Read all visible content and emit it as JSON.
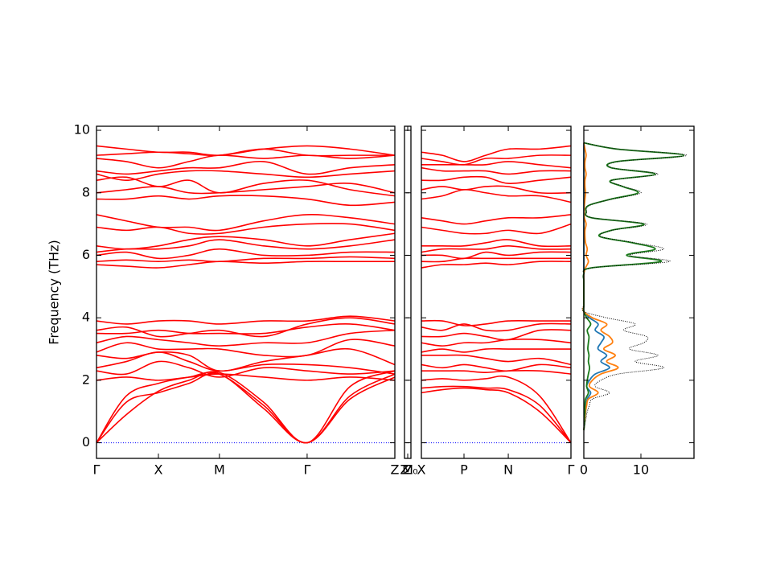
{
  "chart_data": [
    {
      "type": "line",
      "ylabel": "Frequency (THz)",
      "color": "#ff0000",
      "xlim": [
        0,
        1
      ],
      "ylim": [
        -0.5,
        10.13
      ],
      "yticks": [
        0,
        2,
        4,
        6,
        8,
        10
      ],
      "show_ytick_labels": true,
      "xticks": [
        {
          "value": 0,
          "label": "Γ"
        },
        {
          "value": 0.2075,
          "label": "X"
        },
        {
          "value": 0.412,
          "label": "M"
        },
        {
          "value": 0.706,
          "label": "Γ"
        },
        {
          "value": 1,
          "label": "Z"
        }
      ],
      "hline": 0,
      "hline_color": "#0000ff",
      "x": [
        0,
        0.1,
        0.2075,
        0.31,
        0.412,
        0.56,
        0.706,
        0.85,
        1
      ],
      "series": [
        {
          "values": [
            0,
            1.5,
            1.9,
            2.1,
            2.2,
            1.2,
            0,
            1.5,
            2.2
          ]
        },
        {
          "values": [
            0,
            1.3,
            1.6,
            1.9,
            2.2,
            1.1,
            0,
            1.4,
            2.1
          ]
        },
        {
          "values": [
            0,
            0.9,
            1.65,
            2.0,
            2.25,
            1.3,
            0,
            1.8,
            2.3
          ]
        },
        {
          "values": [
            2.0,
            2.1,
            2.0,
            2.1,
            2.2,
            2.1,
            2.0,
            2.1,
            2.0
          ]
        },
        {
          "values": [
            2.3,
            2.2,
            2.6,
            2.4,
            2.1,
            2.4,
            2.3,
            2.2,
            2.3
          ]
        },
        {
          "values": [
            2.4,
            2.6,
            2.9,
            2.6,
            2.3,
            2.5,
            2.5,
            2.4,
            2.2
          ]
        },
        {
          "values": [
            2.8,
            2.7,
            2.9,
            2.8,
            2.3,
            2.6,
            2.8,
            3.0,
            2.5
          ]
        },
        {
          "values": [
            2.9,
            3.2,
            3.0,
            3.0,
            3.0,
            2.8,
            2.8,
            3.3,
            3.1
          ]
        },
        {
          "values": [
            3.2,
            3.4,
            3.3,
            3.2,
            3.1,
            3.2,
            3.2,
            3.5,
            3.6
          ]
        },
        {
          "values": [
            3.5,
            3.5,
            3.6,
            3.5,
            3.5,
            3.5,
            3.7,
            3.8,
            3.6
          ]
        },
        {
          "values": [
            3.6,
            3.7,
            3.4,
            3.5,
            3.6,
            3.4,
            3.8,
            4.0,
            3.8
          ]
        },
        {
          "values": [
            3.9,
            3.8,
            3.9,
            3.9,
            3.8,
            3.9,
            3.9,
            4.05,
            3.9
          ]
        },
        {
          "values": [
            5.7,
            5.65,
            5.6,
            5.7,
            5.8,
            5.75,
            5.8,
            5.8,
            5.8
          ]
        },
        {
          "values": [
            5.8,
            5.85,
            5.8,
            5.85,
            5.8,
            5.9,
            5.9,
            5.95,
            5.9
          ]
        },
        {
          "values": [
            6.0,
            6.1,
            5.9,
            6.0,
            6.2,
            6.0,
            6.0,
            6.1,
            6.1
          ]
        },
        {
          "values": [
            6.1,
            6.2,
            6.2,
            6.3,
            6.5,
            6.3,
            6.2,
            6.3,
            6.5
          ]
        },
        {
          "values": [
            6.3,
            6.2,
            6.3,
            6.5,
            6.6,
            6.5,
            6.3,
            6.5,
            6.7
          ]
        },
        {
          "values": [
            6.9,
            6.8,
            6.9,
            6.7,
            6.7,
            6.9,
            7.0,
            7.0,
            6.8
          ]
        },
        {
          "values": [
            7.3,
            7.1,
            6.9,
            6.9,
            6.8,
            7.1,
            7.3,
            7.2,
            7.0
          ]
        },
        {
          "values": [
            7.8,
            7.8,
            7.9,
            7.8,
            7.9,
            7.9,
            7.8,
            7.6,
            7.7
          ]
        },
        {
          "values": [
            8.0,
            8.1,
            8.2,
            8.0,
            8.0,
            8.1,
            8.2,
            8.3,
            8.0
          ]
        },
        {
          "values": [
            8.4,
            8.5,
            8.2,
            8.4,
            8.0,
            8.3,
            8.4,
            8.1,
            7.9
          ]
        },
        {
          "values": [
            8.6,
            8.4,
            8.6,
            8.7,
            8.7,
            8.6,
            8.5,
            8.6,
            8.7
          ]
        },
        {
          "values": [
            8.7,
            8.6,
            8.7,
            8.8,
            8.8,
            9.0,
            8.6,
            8.8,
            8.9
          ]
        },
        {
          "values": [
            9.1,
            9.0,
            8.8,
            9.0,
            9.2,
            9.1,
            9.2,
            9.1,
            9.2
          ]
        },
        {
          "values": [
            9.2,
            9.25,
            9.3,
            9.25,
            9.2,
            9.4,
            9.2,
            9.2,
            9.2
          ]
        },
        {
          "values": [
            9.5,
            9.4,
            9.3,
            9.3,
            9.2,
            9.4,
            9.5,
            9.4,
            9.2
          ]
        }
      ]
    },
    {
      "type": "line",
      "color": "#ff0000",
      "xlim": [
        0,
        1
      ],
      "ylim": [
        -0.5,
        10.13
      ],
      "yticks": [
        0,
        2,
        4,
        6,
        8,
        10
      ],
      "show_ytick_labels": false,
      "xticks": [
        {
          "value": 0,
          "label": "Z"
        },
        {
          "value": 0.5,
          "label": "M"
        },
        {
          "value": 1,
          "label": "Z₀"
        }
      ]
    },
    {
      "type": "line",
      "color": "#ff0000",
      "xlim": [
        0,
        1
      ],
      "ylim": [
        -0.5,
        10.13
      ],
      "yticks": [
        0,
        2,
        4,
        6,
        8,
        10
      ],
      "show_ytick_labels": false,
      "xticks": [
        {
          "value": 0,
          "label": "X"
        },
        {
          "value": 0.285,
          "label": "P"
        },
        {
          "value": 0.581,
          "label": "N"
        },
        {
          "value": 1,
          "label": "Γ"
        }
      ],
      "hline": 0,
      "hline_color": "#0000ff",
      "x": [
        0,
        0.14,
        0.285,
        0.43,
        0.581,
        0.79,
        1
      ],
      "series": [
        {
          "values": [
            1.6,
            1.7,
            1.75,
            1.7,
            1.6,
            1.0,
            0
          ]
        },
        {
          "values": [
            1.75,
            1.8,
            1.8,
            1.75,
            1.7,
            1.2,
            0
          ]
        },
        {
          "values": [
            2.0,
            2.05,
            2.0,
            2.05,
            2.1,
            1.5,
            0
          ]
        },
        {
          "values": [
            2.3,
            2.3,
            2.3,
            2.25,
            2.3,
            2.3,
            2.2
          ]
        },
        {
          "values": [
            2.5,
            2.4,
            2.5,
            2.4,
            2.3,
            2.5,
            2.4
          ]
        },
        {
          "values": [
            2.8,
            2.8,
            2.8,
            2.7,
            2.6,
            2.7,
            2.5
          ]
        },
        {
          "values": [
            2.9,
            3.0,
            2.9,
            3.0,
            3.0,
            3.0,
            3.0
          ]
        },
        {
          "values": [
            3.2,
            3.1,
            3.2,
            3.2,
            3.3,
            3.3,
            3.2
          ]
        },
        {
          "values": [
            3.4,
            3.4,
            3.5,
            3.4,
            3.3,
            3.6,
            3.6
          ]
        },
        {
          "values": [
            3.7,
            3.6,
            3.8,
            3.6,
            3.6,
            3.8,
            3.8
          ]
        },
        {
          "values": [
            3.9,
            3.9,
            3.75,
            3.8,
            3.9,
            3.9,
            3.9
          ]
        },
        {
          "values": [
            5.6,
            5.7,
            5.7,
            5.75,
            5.7,
            5.8,
            5.8
          ]
        },
        {
          "values": [
            5.8,
            5.8,
            5.9,
            5.9,
            5.9,
            5.9,
            5.9
          ]
        },
        {
          "values": [
            6.0,
            6.0,
            5.9,
            6.1,
            6.0,
            6.1,
            6.1
          ]
        },
        {
          "values": [
            6.1,
            6.2,
            6.2,
            6.2,
            6.3,
            6.2,
            6.2
          ]
        },
        {
          "values": [
            6.3,
            6.3,
            6.3,
            6.4,
            6.5,
            6.3,
            6.3
          ]
        },
        {
          "values": [
            6.9,
            6.8,
            6.7,
            6.7,
            6.8,
            6.7,
            7.0
          ]
        },
        {
          "values": [
            7.2,
            7.1,
            7.0,
            7.1,
            7.2,
            7.2,
            7.3
          ]
        },
        {
          "values": [
            7.8,
            7.9,
            8.1,
            8.0,
            7.9,
            7.9,
            7.7
          ]
        },
        {
          "values": [
            8.1,
            8.2,
            8.1,
            8.2,
            8.2,
            8.0,
            8.0
          ]
        },
        {
          "values": [
            8.4,
            8.4,
            8.5,
            8.5,
            8.3,
            8.4,
            8.5
          ]
        },
        {
          "values": [
            8.8,
            8.7,
            8.7,
            8.7,
            8.6,
            8.7,
            8.7
          ]
        },
        {
          "values": [
            8.9,
            8.9,
            8.9,
            8.9,
            9.0,
            8.9,
            8.8
          ]
        },
        {
          "values": [
            9.1,
            9.0,
            8.9,
            9.1,
            9.1,
            9.2,
            9.2
          ]
        },
        {
          "values": [
            9.3,
            9.2,
            9.0,
            9.2,
            9.4,
            9.4,
            9.5
          ]
        }
      ]
    },
    {
      "type": "dos",
      "xlim": [
        0,
        19.3
      ],
      "xticks": [
        0,
        10
      ],
      "ylim": [
        -0.5,
        10.13
      ],
      "yticks": [
        0,
        2,
        4,
        6,
        8,
        10
      ],
      "show_ytick_labels": false,
      "y": [
        0.4,
        0.6,
        0.8,
        1.0,
        1.2,
        1.4,
        1.6,
        1.8,
        2.0,
        2.2,
        2.4,
        2.6,
        2.8,
        3.0,
        3.2,
        3.4,
        3.6,
        3.8,
        4.0,
        4.2,
        4.4,
        4.6,
        4.8,
        5.0,
        5.2,
        5.4,
        5.6,
        5.8,
        6.0,
        6.2,
        6.4,
        6.6,
        6.8,
        7.0,
        7.2,
        7.4,
        7.6,
        7.8,
        8.0,
        8.2,
        8.4,
        8.6,
        8.8,
        9.0,
        9.2,
        9.4,
        9.6
      ],
      "series": [
        {
          "color": "#1f77b4",
          "style": "solid",
          "values": [
            0,
            0.1,
            0.2,
            0.3,
            0.4,
            0.6,
            1.2,
            0.5,
            1.0,
            2.0,
            4.5,
            3.0,
            4.0,
            2.5,
            3.0,
            3.5,
            2.0,
            2.5,
            1.0,
            0,
            0,
            0,
            0,
            0,
            0,
            0,
            0,
            0,
            0,
            0,
            0,
            0,
            0,
            0,
            0,
            0,
            0,
            0,
            0,
            0,
            0,
            0,
            0,
            0,
            0,
            0,
            0
          ]
        },
        {
          "color": "#ff7f0e",
          "style": "solid",
          "values": [
            0,
            0.1,
            0.2,
            0.3,
            0.5,
            0.8,
            2.5,
            1.0,
            1.5,
            3.0,
            6.0,
            4.0,
            5.5,
            3.5,
            5.0,
            4.5,
            3.0,
            4.0,
            1.5,
            0,
            0,
            0,
            0,
            0,
            0,
            0,
            0.3,
            0.8,
            0.4,
            0.6,
            0.3,
            0.2,
            0.2,
            0.4,
            0.1,
            0.05,
            0.1,
            0.2,
            0.3,
            0.2,
            0.2,
            0.4,
            0.2,
            0.2,
            0.4,
            0.2,
            0
          ]
        },
        {
          "color": "#1b7a1b",
          "style": "solid",
          "values": [
            0,
            0.1,
            0.1,
            0.2,
            0.2,
            0.3,
            0.8,
            0.5,
            0.6,
            0.8,
            1.0,
            0.8,
            0.9,
            0.7,
            0.8,
            0.9,
            0.6,
            1.2,
            0.5,
            0,
            0,
            0,
            0,
            0,
            0,
            0,
            1.4,
            13.5,
            7.5,
            12.5,
            8.5,
            2.8,
            4.8,
            10.5,
            1.4,
            0.4,
            0.9,
            4.8,
            9.5,
            6.8,
            4.8,
            12.5,
            4.8,
            5.8,
            17.5,
            5.8,
            0
          ]
        },
        {
          "color": "#000000",
          "style": "dotted",
          "values": [
            0,
            0.2,
            0.4,
            0.6,
            1.0,
            1.5,
            4.5,
            2.0,
            3.0,
            6.0,
            14.0,
            9.0,
            13.0,
            8.0,
            10.5,
            11.0,
            7.0,
            9.0,
            4.0,
            0,
            0,
            0,
            0,
            0,
            0,
            0,
            1.5,
            15.0,
            8.0,
            14.0,
            9.0,
            3.0,
            5.0,
            11.0,
            1.5,
            0.5,
            1.0,
            5.0,
            10.0,
            7.0,
            5.0,
            13.0,
            5.0,
            6.0,
            18.0,
            6.0,
            0
          ]
        }
      ]
    }
  ]
}
